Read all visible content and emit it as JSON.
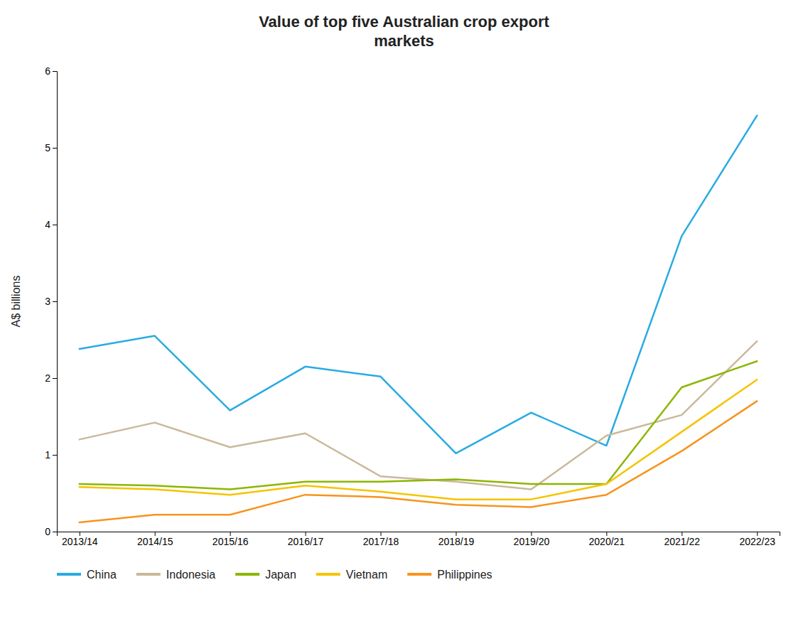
{
  "chart_data": {
    "type": "line",
    "title": "Value of top five Australian crop export\nmarkets",
    "y_label": "A$ billions",
    "categories": [
      "2013/14",
      "2014/15",
      "2015/16",
      "2016/17",
      "2017/18",
      "2018/19",
      "2019/20",
      "2020/21",
      "2021/22",
      "2022/23"
    ],
    "series": [
      {
        "name": "China",
        "color": "#29ABE2",
        "values": [
          2.38,
          2.55,
          1.58,
          2.15,
          2.02,
          1.02,
          1.55,
          1.12,
          3.85,
          5.42
        ]
      },
      {
        "name": "Indonesia",
        "color": "#C9B99A",
        "values": [
          1.2,
          1.42,
          1.1,
          1.28,
          0.72,
          0.65,
          0.55,
          1.25,
          1.52,
          2.48
        ]
      },
      {
        "name": "Japan",
        "color": "#8DB600",
        "values": [
          0.62,
          0.6,
          0.55,
          0.65,
          0.65,
          0.68,
          0.62,
          0.62,
          1.88,
          2.22
        ]
      },
      {
        "name": "Vietnam",
        "color": "#F5C400",
        "values": [
          0.58,
          0.55,
          0.48,
          0.6,
          0.52,
          0.42,
          0.42,
          0.62,
          1.3,
          1.98
        ]
      },
      {
        "name": "Philippines",
        "color": "#F7941D",
        "values": [
          0.12,
          0.22,
          0.22,
          0.48,
          0.45,
          0.35,
          0.32,
          0.48,
          1.05,
          1.7
        ]
      }
    ],
    "ylim": [
      0,
      6
    ],
    "yticks": [
      0,
      1,
      2,
      3,
      4,
      5,
      6
    ],
    "grid": false,
    "legend": "bottom"
  }
}
